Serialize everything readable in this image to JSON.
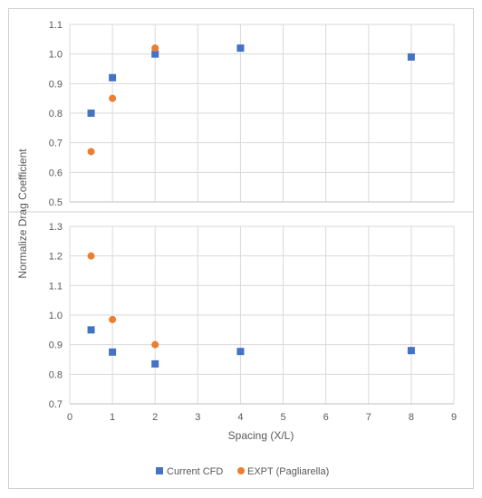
{
  "chart_data": [
    {
      "type": "scatter",
      "panel": "top",
      "ylabel": "Normalize Drag Coefficient",
      "xlabel": "",
      "xlim": [
        0,
        9
      ],
      "ylim": [
        0.5,
        1.1
      ],
      "yticks": [
        "0.5",
        "0.6",
        "0.7",
        "0.8",
        "0.9",
        "1.0",
        "1.1"
      ],
      "grid": true,
      "series": [
        {
          "name": "Current CFD",
          "marker": "square",
          "color": "#4472C4",
          "x": [
            0.5,
            1,
            2,
            4,
            8
          ],
          "y": [
            0.8,
            0.92,
            1.0,
            1.02,
            0.99
          ]
        },
        {
          "name": "EXPT (Pagliarella)",
          "marker": "circle",
          "color": "#ED7D31",
          "x": [
            0.5,
            1,
            2
          ],
          "y": [
            0.67,
            0.85,
            1.02
          ]
        }
      ]
    },
    {
      "type": "scatter",
      "panel": "bottom",
      "xlabel": "Spacing (X/L)",
      "xlim": [
        0,
        9
      ],
      "ylim": [
        0.7,
        1.3
      ],
      "xticks": [
        "0",
        "1",
        "2",
        "3",
        "4",
        "5",
        "6",
        "7",
        "8",
        "9"
      ],
      "yticks": [
        "0.7",
        "0.8",
        "0.9",
        "1.0",
        "1.1",
        "1.2",
        "1.3"
      ],
      "grid": true,
      "series": [
        {
          "name": "Current CFD",
          "marker": "square",
          "color": "#4472C4",
          "x": [
            0.5,
            1,
            2,
            4,
            8
          ],
          "y": [
            0.95,
            0.875,
            0.835,
            0.877,
            0.88
          ]
        },
        {
          "name": "EXPT (Pagliarella)",
          "marker": "circle",
          "color": "#ED7D31",
          "x": [
            0.5,
            1,
            2
          ],
          "y": [
            1.2,
            0.985,
            0.9
          ]
        }
      ]
    }
  ],
  "legend": {
    "placement": "bottom",
    "items": [
      {
        "label": "Current CFD",
        "marker": "square",
        "color": "#4472C4"
      },
      {
        "label": "EXPT (Pagliarella)",
        "marker": "circle",
        "color": "#ED7D31"
      }
    ]
  },
  "colors": {
    "grid": "#d9d9d9",
    "axis": "#bfbfbf",
    "text": "#595959",
    "divider": "#d0d0d0"
  }
}
